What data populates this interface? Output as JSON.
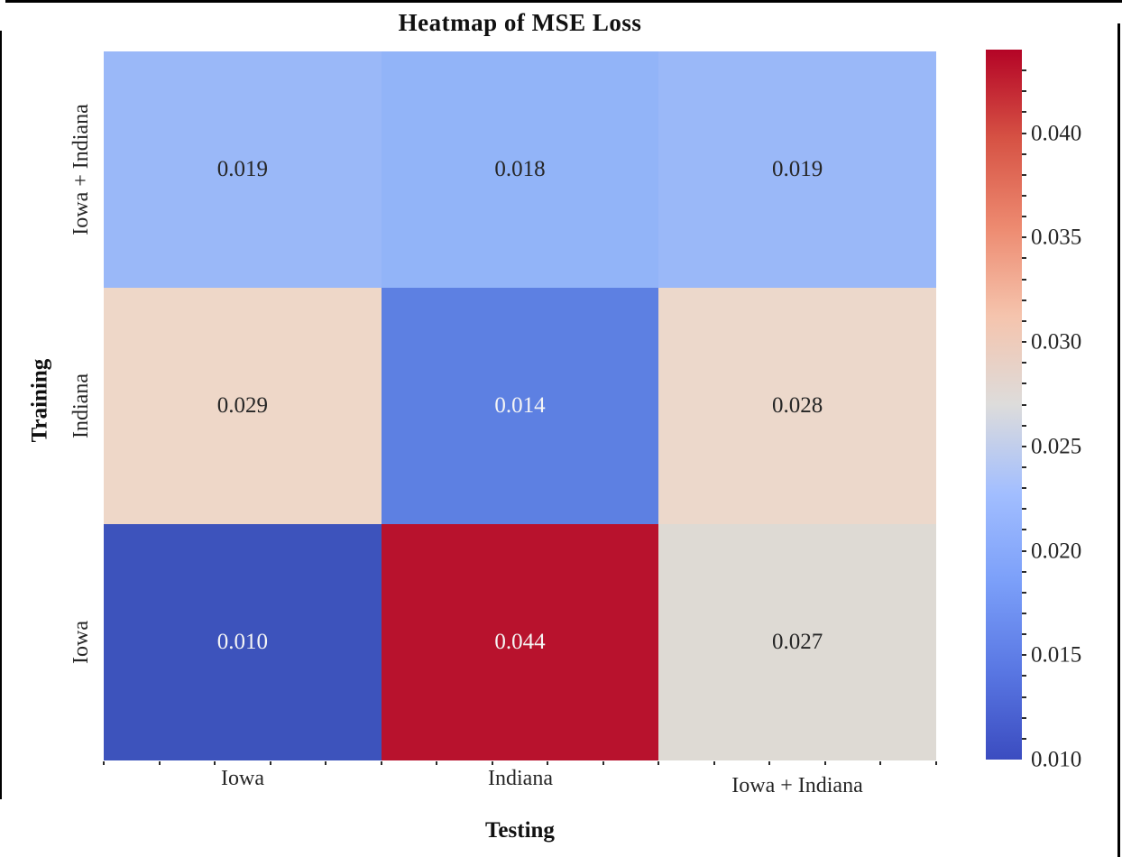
{
  "figure": {
    "title": "Heatmap of MSE Loss",
    "x_axis_label": "Testing",
    "y_axis_label": "Training"
  },
  "chart_data": {
    "type": "heatmap",
    "title": "Heatmap of MSE Loss",
    "xlabel": "Testing",
    "ylabel": "Training",
    "x_categories": [
      "Iowa",
      "Indiana",
      "Iowa + Indiana"
    ],
    "y_categories": [
      "Iowa + Indiana",
      "Indiana",
      "Iowa"
    ],
    "values": [
      [
        0.019,
        0.018,
        0.019
      ],
      [
        0.029,
        0.014,
        0.028
      ],
      [
        0.01,
        0.044,
        0.027
      ]
    ],
    "cells": [
      [
        {
          "label": "0.019",
          "bg": "#9ab8f8",
          "fg": "#262626"
        },
        {
          "label": "0.018",
          "bg": "#92b4f8",
          "fg": "#262626"
        },
        {
          "label": "0.019",
          "bg": "#9ab8f8",
          "fg": "#262626"
        }
      ],
      [
        {
          "label": "0.029",
          "bg": "#eed7c8",
          "fg": "#262626"
        },
        {
          "label": "0.014",
          "bg": "#5d80e2",
          "fg": "#f5f5f5"
        },
        {
          "label": "0.028",
          "bg": "#ecd8cb",
          "fg": "#262626"
        }
      ],
      [
        {
          "label": "0.010",
          "bg": "#3d53bc",
          "fg": "#f5f5f5"
        },
        {
          "label": "0.044",
          "bg": "#b8122d",
          "fg": "#f5f5f5"
        },
        {
          "label": "0.027",
          "bg": "#dedad4",
          "fg": "#262626"
        }
      ]
    ],
    "colorbar": {
      "colormap": "coolwarm",
      "vmin": 0.01,
      "vmax": 0.044,
      "tick_values": [
        0.01,
        0.015,
        0.02,
        0.025,
        0.03,
        0.035,
        0.04
      ],
      "tick_labels": [
        "0.010",
        "0.015",
        "0.020",
        "0.025",
        "0.030",
        "0.035",
        "0.040"
      ],
      "minor_tick_step": 0.001,
      "gradient_stops_bottom_to_top": [
        "#3b4cc0",
        "#5977e3",
        "#7b9ff9",
        "#a2beff",
        "#dddcdb",
        "#f5c4ad",
        "#ed8a70",
        "#d65244",
        "#b40426"
      ]
    },
    "legend": "none",
    "grid": "off"
  }
}
